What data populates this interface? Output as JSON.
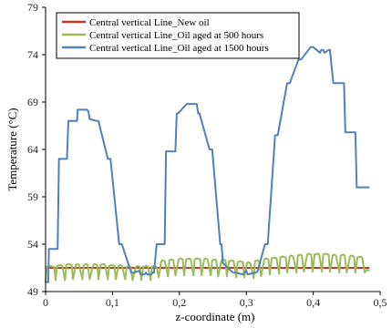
{
  "chart_data": {
    "type": "line",
    "xlabel": "z-coordinate (m)",
    "ylabel": "Temperature (°C)",
    "xlim": [
      0,
      0.5
    ],
    "ylim": [
      49,
      79
    ],
    "xticks": [
      0,
      0.1,
      0.2,
      0.3,
      0.4,
      0.5
    ],
    "xtick_labels": [
      "0",
      "0,1",
      "0,2",
      "0,3",
      "0,4",
      "0,5"
    ],
    "yticks": [
      49,
      54,
      59,
      64,
      69,
      74,
      79
    ],
    "ytick_labels": [
      "49",
      "54",
      "59",
      "64",
      "69",
      "74",
      "79"
    ],
    "grid": false,
    "legend_position": "top-left",
    "series": [
      {
        "name": "Central vertical Line_New oil",
        "color": "#c0392b",
        "x": [
          0,
          0.484
        ],
        "y": [
          51.5,
          51.5
        ]
      },
      {
        "name": "Central vertical Line_Oil aged at 500 hours",
        "color": "#9bbb59",
        "x": [
          0,
          0.002,
          0.006,
          0.013,
          0.015,
          0.017,
          0.022,
          0.025,
          0.029,
          0.031,
          0.034,
          0.039,
          0.041,
          0.045,
          0.047,
          0.05,
          0.055,
          0.057,
          0.061,
          0.063,
          0.066,
          0.071,
          0.073,
          0.077,
          0.079,
          0.082,
          0.087,
          0.089,
          0.093,
          0.095,
          0.098,
          0.103,
          0.105,
          0.109,
          0.111,
          0.114,
          0.119,
          0.121,
          0.125,
          0.127,
          0.13,
          0.135,
          0.137,
          0.141,
          0.143,
          0.146,
          0.151,
          0.153,
          0.157,
          0.159,
          0.162,
          0.166,
          0.169,
          0.173,
          0.175,
          0.178,
          0.183,
          0.185,
          0.189,
          0.191,
          0.194,
          0.199,
          0.201,
          0.205,
          0.207,
          0.21,
          0.215,
          0.217,
          0.221,
          0.223,
          0.226,
          0.231,
          0.233,
          0.237,
          0.239,
          0.242,
          0.247,
          0.249,
          0.253,
          0.255,
          0.258,
          0.263,
          0.265,
          0.269,
          0.271,
          0.274,
          0.279,
          0.281,
          0.285,
          0.287,
          0.29,
          0.295,
          0.297,
          0.301,
          0.303,
          0.306,
          0.311,
          0.313,
          0.317,
          0.319,
          0.322,
          0.327,
          0.329,
          0.333,
          0.335,
          0.338,
          0.343,
          0.345,
          0.349,
          0.351,
          0.354,
          0.359,
          0.361,
          0.365,
          0.367,
          0.37,
          0.375,
          0.377,
          0.381,
          0.383,
          0.386,
          0.391,
          0.393,
          0.397,
          0.399,
          0.402,
          0.407,
          0.409,
          0.413,
          0.415,
          0.418,
          0.423,
          0.425,
          0.429,
          0.431,
          0.434,
          0.439,
          0.441,
          0.445,
          0.447,
          0.45,
          0.455,
          0.457,
          0.461,
          0.463,
          0.466,
          0.471,
          0.473,
          0.477,
          0.48,
          0.484
        ],
        "y": [
          50.0,
          51.6,
          51.7,
          51.6,
          50.2,
          51.7,
          51.8,
          51.7,
          50.2,
          51.8,
          51.9,
          51.8,
          50.3,
          51.8,
          51.9,
          51.8,
          50.3,
          51.8,
          51.9,
          51.8,
          50.3,
          51.8,
          51.9,
          51.8,
          50.3,
          51.8,
          51.9,
          51.8,
          50.3,
          51.7,
          51.8,
          51.7,
          50.3,
          51.7,
          51.8,
          51.7,
          50.3,
          51.6,
          51.7,
          51.6,
          50.2,
          51.6,
          51.7,
          51.6,
          50.2,
          51.6,
          51.7,
          51.6,
          50.2,
          51.6,
          51.7,
          51.6,
          50.5,
          52.2,
          52.3,
          52.2,
          50.6,
          52.3,
          52.4,
          52.3,
          50.7,
          52.4,
          52.5,
          52.4,
          50.7,
          52.4,
          52.5,
          52.4,
          50.7,
          52.4,
          52.5,
          52.4,
          50.7,
          52.4,
          52.5,
          52.4,
          50.7,
          52.3,
          52.4,
          52.3,
          50.6,
          52.3,
          52.4,
          52.3,
          50.6,
          52.2,
          52.3,
          52.2,
          50.5,
          52.1,
          52.2,
          52.1,
          50.5,
          52.0,
          52.1,
          52.0,
          50.4,
          52.2,
          52.3,
          52.2,
          50.6,
          52.4,
          52.5,
          52.4,
          50.8,
          52.5,
          52.6,
          52.5,
          50.9,
          52.6,
          52.7,
          52.6,
          51.0,
          52.7,
          52.8,
          52.7,
          51.0,
          52.8,
          52.9,
          52.8,
          51.1,
          52.9,
          53.0,
          52.9,
          51.1,
          52.9,
          53.0,
          52.9,
          51.1,
          52.9,
          53.0,
          52.9,
          51.1,
          52.8,
          52.9,
          52.8,
          51.0,
          52.8,
          52.9,
          52.8,
          51.0,
          52.7,
          52.8,
          52.7,
          51.0,
          52.6,
          52.7,
          52.6,
          51.0,
          51.3,
          51.2
        ]
      },
      {
        "name": "Central vertical Line_Oil aged at 1500 hours",
        "color": "#4f81bd",
        "x": [
          0,
          0.004,
          0.005,
          0.018,
          0.02,
          0.022,
          0.032,
          0.034,
          0.045,
          0.047,
          0.048,
          0.062,
          0.064,
          0.066,
          0.077,
          0.079,
          0.093,
          0.095,
          0.097,
          0.11,
          0.112,
          0.114,
          0.128,
          0.13,
          0.132,
          0.14,
          0.142,
          0.148,
          0.15,
          0.152,
          0.158,
          0.16,
          0.162,
          0.166,
          0.168,
          0.178,
          0.18,
          0.182,
          0.194,
          0.196,
          0.198,
          0.211,
          0.213,
          0.226,
          0.228,
          0.23,
          0.245,
          0.247,
          0.249,
          0.261,
          0.263,
          0.265,
          0.28,
          0.282,
          0.284,
          0.295,
          0.297,
          0.3,
          0.302,
          0.313,
          0.315,
          0.317,
          0.328,
          0.33,
          0.332,
          0.343,
          0.345,
          0.347,
          0.361,
          0.363,
          0.365,
          0.378,
          0.38,
          0.382,
          0.396,
          0.398,
          0.4,
          0.41,
          0.412,
          0.415,
          0.417,
          0.423,
          0.425,
          0.43,
          0.432,
          0.446,
          0.448,
          0.45,
          0.463,
          0.465,
          0.467,
          0.472,
          0.474,
          0.48,
          0.484
        ],
        "y": [
          50.0,
          50.0,
          53.5,
          53.5,
          63.0,
          63.0,
          63.0,
          67.0,
          67.0,
          67.0,
          68.2,
          68.2,
          68.0,
          67.2,
          67.0,
          67.0,
          63.0,
          63.0,
          63.0,
          54.0,
          54.0,
          54.0,
          51.0,
          51.0,
          51.0,
          51.2,
          50.8,
          50.8,
          51.0,
          50.8,
          50.8,
          51.0,
          51.0,
          54.0,
          54.0,
          54.0,
          63.8,
          63.8,
          63.8,
          67.8,
          67.8,
          68.8,
          68.8,
          68.8,
          67.8,
          67.8,
          64.0,
          64.0,
          64.0,
          54.0,
          54.0,
          52.0,
          51.0,
          51.0,
          51.0,
          50.8,
          51.0,
          51.2,
          50.8,
          51.0,
          51.0,
          51.2,
          54.0,
          54.0,
          54.0,
          65.5,
          65.5,
          65.5,
          71.0,
          71.0,
          71.0,
          73.5,
          73.5,
          73.5,
          74.8,
          74.8,
          74.8,
          74.2,
          74.5,
          74.5,
          74.2,
          74.5,
          74.5,
          71.0,
          71.0,
          71.0,
          65.8,
          65.8,
          65.8,
          60.0,
          60.0,
          60.0,
          60.0,
          60.0,
          60.0
        ]
      }
    ]
  }
}
